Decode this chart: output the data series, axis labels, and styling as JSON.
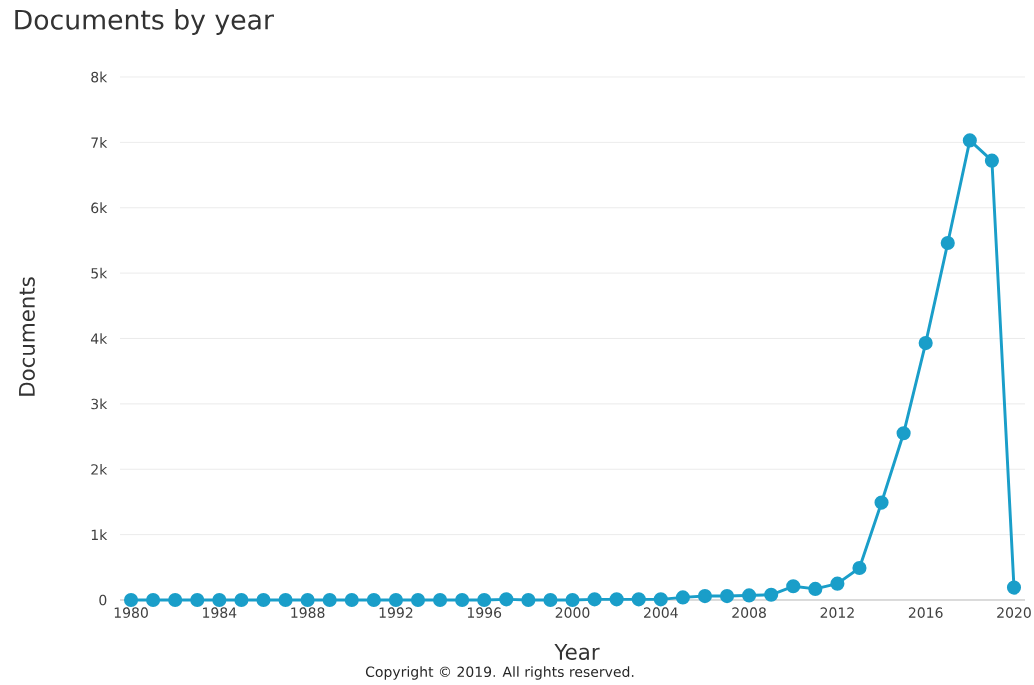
{
  "chart_data": {
    "type": "line",
    "title": "Documents by year",
    "xlabel": "Year",
    "ylabel": "Documents",
    "annotations": [
      "Copyright © 2019. All rights reserved."
    ],
    "x": [
      1980,
      1981,
      1982,
      1983,
      1984,
      1985,
      1986,
      1987,
      1988,
      1989,
      1990,
      1991,
      1992,
      1993,
      1994,
      1995,
      1996,
      1997,
      1998,
      1999,
      2000,
      2001,
      2002,
      2003,
      2004,
      2005,
      2006,
      2007,
      2008,
      2009,
      2010,
      2011,
      2012,
      2013,
      2014,
      2015,
      2016,
      2017,
      2018,
      2019,
      2020
    ],
    "series": [
      {
        "color": "#1a9ec9",
        "values": [
          0,
          0,
          0,
          0,
          0,
          0,
          0,
          0,
          0,
          0,
          0,
          0,
          0,
          0,
          0,
          0,
          0,
          10,
          0,
          0,
          0,
          10,
          10,
          10,
          10,
          40,
          60,
          60,
          70,
          80,
          210,
          170,
          250,
          490,
          1490,
          2550,
          3930,
          5460,
          7030,
          6720,
          190
        ]
      }
    ],
    "xlim": [
      1979.5,
      2020.5
    ],
    "xticks": [
      1980,
      1984,
      1988,
      1992,
      1996,
      2000,
      2004,
      2008,
      2012,
      2016,
      2020
    ],
    "ylim": [
      0,
      8000
    ],
    "yticks": [
      {
        "value": 0,
        "label": "0"
      },
      {
        "value": 1000,
        "label": "1k"
      },
      {
        "value": 2000,
        "label": "2k"
      },
      {
        "value": 3000,
        "label": "3k"
      },
      {
        "value": 4000,
        "label": "4k"
      },
      {
        "value": 5000,
        "label": "5k"
      },
      {
        "value": 6000,
        "label": "6k"
      },
      {
        "value": 7000,
        "label": "7k"
      },
      {
        "value": 8000,
        "label": "8k"
      }
    ],
    "grid": "y",
    "marker": "circle",
    "line_style": "solid"
  }
}
